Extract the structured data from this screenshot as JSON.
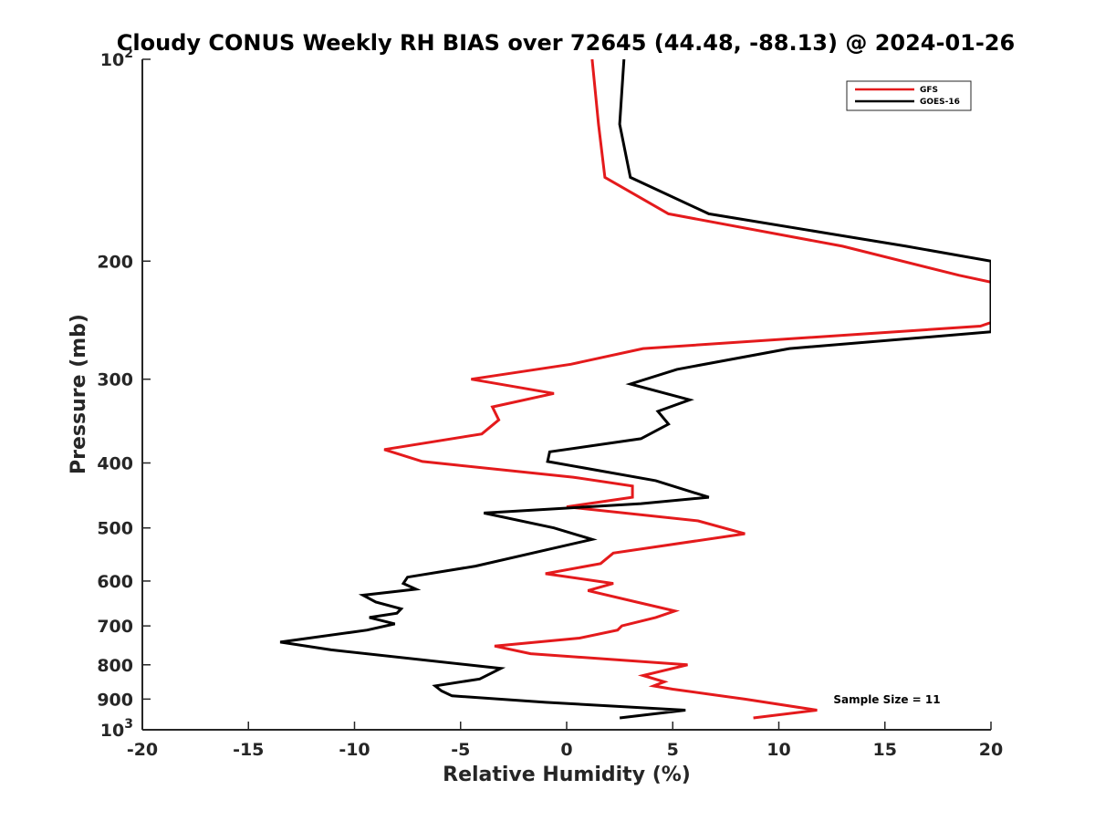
{
  "chart_data": {
    "type": "line",
    "title": "Cloudy CONUS Weekly RH BIAS over 72645 (44.48, -88.13) @ 2024-01-26",
    "xlabel": "Relative Humidity (%)",
    "ylabel": "Pressure (mb)",
    "xlim": [
      -20,
      20
    ],
    "ylim": [
      100,
      1000
    ],
    "y_scale": "log",
    "y_reversed": true,
    "x_ticks": [
      "-20",
      "-15",
      "-10",
      "-5",
      "0",
      "5",
      "10",
      "15",
      "20"
    ],
    "y_ticks": [
      {
        "value": 100,
        "base": "10",
        "exp": "2"
      },
      {
        "value": 200,
        "label": "200"
      },
      {
        "value": 300,
        "label": "300"
      },
      {
        "value": 400,
        "label": "400"
      },
      {
        "value": 500,
        "label": "500"
      },
      {
        "value": 600,
        "label": "600"
      },
      {
        "value": 700,
        "label": "700"
      },
      {
        "value": 800,
        "label": "800"
      },
      {
        "value": 900,
        "label": "900"
      },
      {
        "value": 1000,
        "base": "10",
        "exp": "3"
      }
    ],
    "grid": false,
    "legend_position": "top-right",
    "annotation": "Sample Size = 11",
    "series": [
      {
        "name": "GFS",
        "color": "#e41a1c",
        "points": [
          [
            1.2,
            100
          ],
          [
            1.5,
            125
          ],
          [
            1.8,
            150
          ],
          [
            4.8,
            170
          ],
          [
            13,
            190
          ],
          [
            18.5,
            210
          ],
          [
            20,
            215
          ],
          [
            20,
            247
          ],
          [
            19.5,
            250
          ],
          [
            3.6,
            270
          ],
          [
            0.2,
            285
          ],
          [
            -4.5,
            300
          ],
          [
            -0.6,
            315
          ],
          [
            -3.5,
            330
          ],
          [
            -3.2,
            345
          ],
          [
            -4,
            362
          ],
          [
            -8.6,
            382
          ],
          [
            -6.8,
            398
          ],
          [
            0.3,
            420
          ],
          [
            3.1,
            433
          ],
          [
            3.1,
            450
          ],
          [
            0,
            465
          ],
          [
            6.2,
            488
          ],
          [
            8.4,
            510
          ],
          [
            2.2,
            545
          ],
          [
            1.6,
            565
          ],
          [
            -1,
            585
          ],
          [
            2.2,
            605
          ],
          [
            1,
            620
          ],
          [
            3.3,
            645
          ],
          [
            5.1,
            665
          ],
          [
            4.2,
            680
          ],
          [
            2.6,
            700
          ],
          [
            2.4,
            710
          ],
          [
            0.6,
            730
          ],
          [
            -3.4,
            750
          ],
          [
            -1.7,
            770
          ],
          [
            5.7,
            800
          ],
          [
            3.6,
            830
          ],
          [
            4.6,
            848
          ],
          [
            4.1,
            860
          ],
          [
            5,
            870
          ],
          [
            8.4,
            900
          ],
          [
            11.8,
            935
          ],
          [
            8.8,
            960
          ]
        ]
      },
      {
        "name": "GOES-16",
        "color": "#000000",
        "points": [
          [
            2.7,
            100
          ],
          [
            2.5,
            125
          ],
          [
            3.0,
            150
          ],
          [
            6.7,
            170
          ],
          [
            16,
            190
          ],
          [
            20,
            200
          ],
          [
            20,
            255
          ],
          [
            10.5,
            270
          ],
          [
            5.2,
            290
          ],
          [
            3,
            305
          ],
          [
            5.8,
            322
          ],
          [
            4.3,
            335
          ],
          [
            4.8,
            350
          ],
          [
            3.5,
            368
          ],
          [
            -0.8,
            385
          ],
          [
            -0.9,
            398
          ],
          [
            4.2,
            425
          ],
          [
            6.7,
            450
          ],
          [
            3.5,
            460
          ],
          [
            -3.9,
            475
          ],
          [
            -0.6,
            500
          ],
          [
            1.2,
            520
          ],
          [
            -4.3,
            570
          ],
          [
            -7.5,
            592
          ],
          [
            -7.7,
            605
          ],
          [
            -7.1,
            617
          ],
          [
            -9.6,
            630
          ],
          [
            -9.0,
            645
          ],
          [
            -7.8,
            660
          ],
          [
            -8.0,
            670
          ],
          [
            -9.3,
            680
          ],
          [
            -8.1,
            695
          ],
          [
            -9.4,
            710
          ],
          [
            -13.5,
            740
          ],
          [
            -11.1,
            760
          ],
          [
            -3.1,
            810
          ],
          [
            -4.1,
            840
          ],
          [
            -6.2,
            860
          ],
          [
            -5.9,
            875
          ],
          [
            -5.4,
            890
          ],
          [
            -1,
            910
          ],
          [
            5.6,
            935
          ],
          [
            2.5,
            960
          ]
        ]
      }
    ]
  }
}
